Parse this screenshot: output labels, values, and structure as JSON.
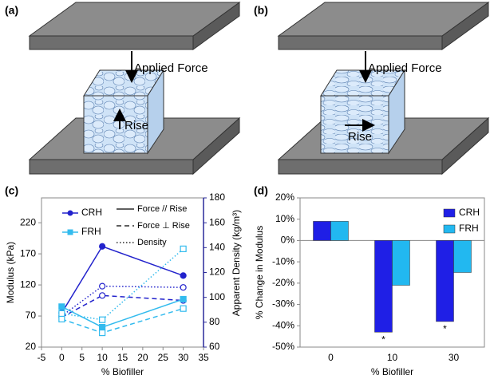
{
  "diagrams": [
    {
      "label": "(a)",
      "force": "Applied Force",
      "rise": "Rise"
    },
    {
      "label": "(b)",
      "force": "Applied Force",
      "rise": "Rise"
    }
  ],
  "chart_data": [
    {
      "type": "line",
      "panel_label": "(c)",
      "xlabel": "% Biofiller",
      "ylabel": "Modulus (kPa)",
      "y2label": "Apparent Density (kg/m³)",
      "x": [
        0,
        10,
        30
      ],
      "xlim": [
        -5,
        35
      ],
      "xticks": [
        -5,
        0,
        5,
        10,
        15,
        20,
        25,
        30,
        35
      ],
      "ylim": [
        20,
        260
      ],
      "yticks": [
        20,
        70,
        120,
        170,
        220
      ],
      "y2lim": [
        60,
        180
      ],
      "y2ticks": [
        60,
        80,
        100,
        120,
        140,
        160,
        180
      ],
      "line_styles": [
        "Force // Rise",
        "Force ⊥ Rise",
        "Density"
      ],
      "series": [
        {
          "name": "CRH",
          "color": "#2222cc",
          "force_parallel": [
            75,
            182,
            135
          ],
          "force_perpendicular": [
            68,
            103,
            95
          ],
          "density": [
            85,
            109,
            108
          ]
        },
        {
          "name": "FRH",
          "color": "#33bbee",
          "force_parallel": [
            85,
            52,
            97
          ],
          "force_perpendicular": [
            65,
            43,
            82
          ],
          "density": [
            87,
            82,
            139
          ]
        }
      ]
    },
    {
      "type": "bar",
      "panel_label": "(d)",
      "xlabel": "% Biofiller",
      "ylabel": "% Change in Modulus",
      "categories": [
        "0",
        "10",
        "30"
      ],
      "ylim": [
        -50,
        20
      ],
      "yticks": [
        {
          "value": -50,
          "label": "-50%"
        },
        {
          "value": -40,
          "label": "-40%"
        },
        {
          "value": -30,
          "label": "-30%"
        },
        {
          "value": -20,
          "label": "-20%"
        },
        {
          "value": -10,
          "label": "-10%"
        },
        {
          "value": 0,
          "label": "0%"
        },
        {
          "value": 10,
          "label": "10%"
        },
        {
          "value": 20,
          "label": "20%"
        }
      ],
      "annotations": [
        "*",
        "*"
      ],
      "series": [
        {
          "name": "CRH",
          "color": "#1f1fe6",
          "values": [
            9,
            -43,
            -38
          ]
        },
        {
          "name": "FRH",
          "color": "#22b8f0",
          "values": [
            9,
            -21,
            -15
          ]
        }
      ]
    }
  ]
}
